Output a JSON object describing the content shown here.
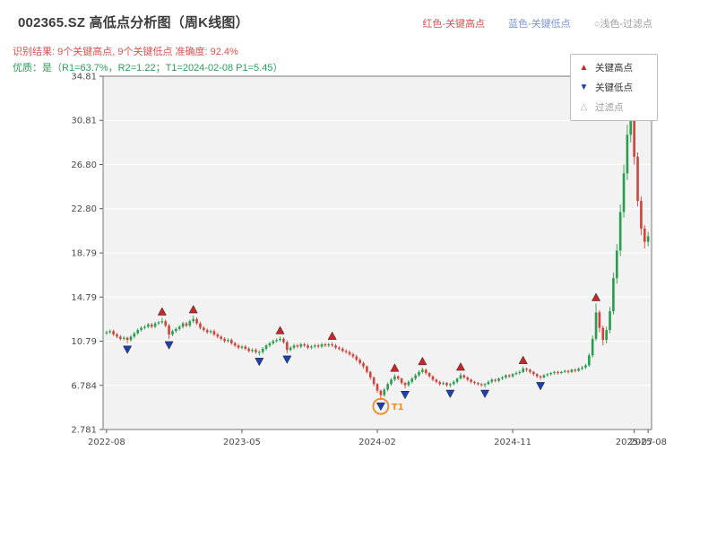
{
  "header": {
    "title": "002365.SZ 高低点分析图（周K线图）",
    "legend": [
      {
        "label": "红色-关键高点",
        "color": "#d9534f"
      },
      {
        "label": "蓝色-关键低点",
        "color": "#7b96cf"
      },
      {
        "label": "○浅色-过滤点",
        "color": "#9e9e9e"
      }
    ],
    "result_line": "识别结果: 9个关键高点, 9个关键低点  准确度: 92.4%",
    "result_color": "#d9534f",
    "quality_line": "优质：是（R1=63.7%，R2=1.22；T1=2024-02-08 P1=5.45）",
    "quality_color": "#2aa05a"
  },
  "chart_data": {
    "type": "candlestick",
    "title": "002365.SZ 高低点分析图（周K线图）",
    "symbol": "002365.SZ",
    "timeframe": "周K线",
    "x_start": "2022-08-04",
    "x_interval_days": 7,
    "ylim": [
      2.781,
      34.81
    ],
    "yticks": [
      "2.781",
      "6.784",
      "10.79",
      "14.79",
      "18.79",
      "22.80",
      "26.80",
      "30.81",
      "34.81"
    ],
    "xticks": [
      {
        "label": "2022-08",
        "i": 0
      },
      {
        "label": "2023-05",
        "i": 39
      },
      {
        "label": "2024-02",
        "i": 78
      },
      {
        "label": "2024-11",
        "i": 117
      },
      {
        "label": "2025-07",
        "i": 152
      },
      {
        "label": "2025-08",
        "i": 156
      }
    ],
    "legend": [
      {
        "label": "关键高点",
        "glyph": "▲",
        "color": "#c62828",
        "text_color": "#333333"
      },
      {
        "label": "关键低点",
        "glyph": "▼",
        "color": "#1e3fae",
        "text_color": "#333333"
      },
      {
        "label": "过滤点",
        "glyph": "△",
        "color": "#aaaaaa",
        "text_color": "#999999"
      }
    ],
    "colors": {
      "up": "#2a9d4e",
      "down": "#cf453c",
      "plot_bg": "#f2f2f3",
      "grid": "#ffffff",
      "spine": "#777777",
      "key_high": "#c62828",
      "key_low": "#1e3fae"
    },
    "candles": [
      [
        11.5,
        11.75,
        11.35,
        11.6
      ],
      [
        11.6,
        11.85,
        11.45,
        11.7
      ],
      [
        11.7,
        11.85,
        11.25,
        11.4
      ],
      [
        11.4,
        11.55,
        11.05,
        11.2
      ],
      [
        11.2,
        11.35,
        10.85,
        11.0
      ],
      [
        11.0,
        11.25,
        10.85,
        11.1
      ],
      [
        11.1,
        11.2,
        10.6,
        10.9
      ],
      [
        10.9,
        11.35,
        10.75,
        11.2
      ],
      [
        11.2,
        11.65,
        11.05,
        11.5
      ],
      [
        11.5,
        11.95,
        11.35,
        11.8
      ],
      [
        11.8,
        12.15,
        11.65,
        12.0
      ],
      [
        12.0,
        12.25,
        11.85,
        12.1
      ],
      [
        12.1,
        12.45,
        11.95,
        12.3
      ],
      [
        12.3,
        12.45,
        11.95,
        12.1
      ],
      [
        12.1,
        12.55,
        11.95,
        12.4
      ],
      [
        12.4,
        12.65,
        12.25,
        12.5
      ],
      [
        12.5,
        12.9,
        12.35,
        12.6
      ],
      [
        12.6,
        12.75,
        12.05,
        12.2
      ],
      [
        12.2,
        12.35,
        11.0,
        11.4
      ],
      [
        11.4,
        11.85,
        11.25,
        11.7
      ],
      [
        11.7,
        12.05,
        11.55,
        11.9
      ],
      [
        11.9,
        12.25,
        11.75,
        12.1
      ],
      [
        12.1,
        12.55,
        11.95,
        12.4
      ],
      [
        12.4,
        12.55,
        12.05,
        12.2
      ],
      [
        12.2,
        12.75,
        12.05,
        12.6
      ],
      [
        12.6,
        13.1,
        12.45,
        12.8
      ],
      [
        12.8,
        12.95,
        12.25,
        12.4
      ],
      [
        12.4,
        12.55,
        11.85,
        12.0
      ],
      [
        12.0,
        12.15,
        11.65,
        11.8
      ],
      [
        11.8,
        11.95,
        11.45,
        11.6
      ],
      [
        11.6,
        11.85,
        11.45,
        11.7
      ],
      [
        11.7,
        11.85,
        11.25,
        11.4
      ],
      [
        11.4,
        11.55,
        11.05,
        11.2
      ],
      [
        11.2,
        11.35,
        10.85,
        11.0
      ],
      [
        11.0,
        11.15,
        10.65,
        10.8
      ],
      [
        10.8,
        11.05,
        10.65,
        10.9
      ],
      [
        10.9,
        11.05,
        10.45,
        10.6
      ],
      [
        10.6,
        10.75,
        10.25,
        10.4
      ],
      [
        10.4,
        10.55,
        10.05,
        10.2
      ],
      [
        10.2,
        10.45,
        10.05,
        10.3
      ],
      [
        10.3,
        10.45,
        9.95,
        10.1
      ],
      [
        10.1,
        10.25,
        9.75,
        9.9
      ],
      [
        9.9,
        10.15,
        9.75,
        10.0
      ],
      [
        10.0,
        10.15,
        9.65,
        9.8
      ],
      [
        9.8,
        9.95,
        9.5,
        9.8
      ],
      [
        9.8,
        10.25,
        9.65,
        10.1
      ],
      [
        10.1,
        10.55,
        9.95,
        10.4
      ],
      [
        10.4,
        10.75,
        10.25,
        10.6
      ],
      [
        10.6,
        10.95,
        10.45,
        10.8
      ],
      [
        10.8,
        11.05,
        10.65,
        10.9
      ],
      [
        10.9,
        11.2,
        10.75,
        11.0
      ],
      [
        11.0,
        11.15,
        10.55,
        10.7
      ],
      [
        10.7,
        10.85,
        9.7,
        10.0
      ],
      [
        10.0,
        10.35,
        9.85,
        10.2
      ],
      [
        10.2,
        10.55,
        10.05,
        10.4
      ],
      [
        10.4,
        10.55,
        10.15,
        10.3
      ],
      [
        10.3,
        10.65,
        10.15,
        10.5
      ],
      [
        10.5,
        10.65,
        10.25,
        10.4
      ],
      [
        10.4,
        10.55,
        10.05,
        10.2
      ],
      [
        10.2,
        10.45,
        10.05,
        10.3
      ],
      [
        10.3,
        10.55,
        10.15,
        10.4
      ],
      [
        10.4,
        10.55,
        10.15,
        10.3
      ],
      [
        10.3,
        10.65,
        10.15,
        10.5
      ],
      [
        10.5,
        10.65,
        10.25,
        10.4
      ],
      [
        10.4,
        10.65,
        10.25,
        10.5
      ],
      [
        10.5,
        10.7,
        10.25,
        10.4
      ],
      [
        10.4,
        10.55,
        10.05,
        10.2
      ],
      [
        10.2,
        10.35,
        9.95,
        10.1
      ],
      [
        10.1,
        10.25,
        9.75,
        9.9
      ],
      [
        9.9,
        10.05,
        9.65,
        9.8
      ],
      [
        9.8,
        9.95,
        9.45,
        9.6
      ],
      [
        9.6,
        9.75,
        9.25,
        9.4
      ],
      [
        9.4,
        9.55,
        8.95,
        9.1
      ],
      [
        9.1,
        9.25,
        8.65,
        8.8
      ],
      [
        8.8,
        8.95,
        8.3,
        8.5
      ],
      [
        8.5,
        8.6,
        7.85,
        8.0
      ],
      [
        8.0,
        8.1,
        7.3,
        7.5
      ],
      [
        7.5,
        7.6,
        6.7,
        6.9
      ],
      [
        6.9,
        7.0,
        6.1,
        6.3
      ],
      [
        6.3,
        6.4,
        5.45,
        5.9
      ],
      [
        5.9,
        6.55,
        5.75,
        6.4
      ],
      [
        6.4,
        7.05,
        6.25,
        6.9
      ],
      [
        6.9,
        7.45,
        6.75,
        7.3
      ],
      [
        7.3,
        7.8,
        7.15,
        7.6
      ],
      [
        7.6,
        7.7,
        7.25,
        7.4
      ],
      [
        7.4,
        7.5,
        6.85,
        7.0
      ],
      [
        7.0,
        7.1,
        6.5,
        6.8
      ],
      [
        6.8,
        7.25,
        6.65,
        7.1
      ],
      [
        7.1,
        7.55,
        6.95,
        7.4
      ],
      [
        7.4,
        7.85,
        7.25,
        7.7
      ],
      [
        7.7,
        8.15,
        7.55,
        8.0
      ],
      [
        8.0,
        8.4,
        7.85,
        8.2
      ],
      [
        8.2,
        8.3,
        7.75,
        7.9
      ],
      [
        7.9,
        8.0,
        7.45,
        7.6
      ],
      [
        7.6,
        7.7,
        7.15,
        7.3
      ],
      [
        7.3,
        7.4,
        6.95,
        7.1
      ],
      [
        7.1,
        7.2,
        6.75,
        6.9
      ],
      [
        6.9,
        7.15,
        6.8,
        7.0
      ],
      [
        7.0,
        7.1,
        6.65,
        6.8
      ],
      [
        6.8,
        7.0,
        6.6,
        6.9
      ],
      [
        6.9,
        7.25,
        6.75,
        7.1
      ],
      [
        7.1,
        7.5,
        6.95,
        7.4
      ],
      [
        7.4,
        7.9,
        7.3,
        7.7
      ],
      [
        7.7,
        7.8,
        7.35,
        7.5
      ],
      [
        7.5,
        7.6,
        7.15,
        7.3
      ],
      [
        7.3,
        7.4,
        6.95,
        7.1
      ],
      [
        7.1,
        7.2,
        6.85,
        7.0
      ],
      [
        7.0,
        7.1,
        6.75,
        6.9
      ],
      [
        6.9,
        7.0,
        6.65,
        6.8
      ],
      [
        6.8,
        7.0,
        6.6,
        6.9
      ],
      [
        6.9,
        7.25,
        6.8,
        7.1
      ],
      [
        7.1,
        7.45,
        6.95,
        7.3
      ],
      [
        7.3,
        7.4,
        7.05,
        7.2
      ],
      [
        7.2,
        7.5,
        7.05,
        7.4
      ],
      [
        7.4,
        7.65,
        7.25,
        7.5
      ],
      [
        7.5,
        7.8,
        7.35,
        7.7
      ],
      [
        7.7,
        7.8,
        7.45,
        7.6
      ],
      [
        7.6,
        7.9,
        7.45,
        7.8
      ],
      [
        7.8,
        8.05,
        7.7,
        7.9
      ],
      [
        7.9,
        8.15,
        7.75,
        8.0
      ],
      [
        8.0,
        8.5,
        7.9,
        8.3
      ],
      [
        8.3,
        8.4,
        8.0,
        8.2
      ],
      [
        8.2,
        8.3,
        7.85,
        8.0
      ],
      [
        8.0,
        8.1,
        7.65,
        7.8
      ],
      [
        7.8,
        7.9,
        7.45,
        7.6
      ],
      [
        7.6,
        7.7,
        7.3,
        7.5
      ],
      [
        7.5,
        7.8,
        7.4,
        7.7
      ],
      [
        7.7,
        7.9,
        7.55,
        7.8
      ],
      [
        7.8,
        8.0,
        7.65,
        7.9
      ],
      [
        7.9,
        8.1,
        7.75,
        8.0
      ],
      [
        8.0,
        8.1,
        7.75,
        7.9
      ],
      [
        7.9,
        8.1,
        7.8,
        8.0
      ],
      [
        8.0,
        8.2,
        7.9,
        8.1
      ],
      [
        8.1,
        8.2,
        7.85,
        8.0
      ],
      [
        8.0,
        8.3,
        7.9,
        8.2
      ],
      [
        8.2,
        8.3,
        7.95,
        8.1
      ],
      [
        8.1,
        8.4,
        8.0,
        8.3
      ],
      [
        8.3,
        8.55,
        8.15,
        8.4
      ],
      [
        8.4,
        8.75,
        8.25,
        8.6
      ],
      [
        8.6,
        9.7,
        8.45,
        9.5
      ],
      [
        9.5,
        11.3,
        9.3,
        11.0
      ],
      [
        11.0,
        14.2,
        10.8,
        13.4
      ],
      [
        13.4,
        13.6,
        11.6,
        12.0
      ],
      [
        12.0,
        12.2,
        10.4,
        10.9
      ],
      [
        10.9,
        12.1,
        10.6,
        11.8
      ],
      [
        11.8,
        13.9,
        11.5,
        13.5
      ],
      [
        13.5,
        17.0,
        13.2,
        16.5
      ],
      [
        16.5,
        19.6,
        16.0,
        19.0
      ],
      [
        19.0,
        23.2,
        18.5,
        22.5
      ],
      [
        22.5,
        26.8,
        22.0,
        26.0
      ],
      [
        26.0,
        30.4,
        25.4,
        29.5
      ],
      [
        29.5,
        31.9,
        28.8,
        31.0
      ],
      [
        31.0,
        31.3,
        26.8,
        27.5
      ],
      [
        27.5,
        27.9,
        23.0,
        23.5
      ],
      [
        23.5,
        23.9,
        20.4,
        21.0
      ],
      [
        21.0,
        21.3,
        19.2,
        19.8
      ],
      [
        19.8,
        20.7,
        19.4,
        20.3
      ]
    ],
    "key_highs": [
      {
        "i": 16,
        "price": 12.9
      },
      {
        "i": 25,
        "price": 13.1
      },
      {
        "i": 50,
        "price": 11.2
      },
      {
        "i": 65,
        "price": 10.7
      },
      {
        "i": 83,
        "price": 7.8
      },
      {
        "i": 91,
        "price": 8.4
      },
      {
        "i": 102,
        "price": 7.9
      },
      {
        "i": 120,
        "price": 8.5
      },
      {
        "i": 141,
        "price": 14.2
      }
    ],
    "key_lows": [
      {
        "i": 6,
        "price": 10.6
      },
      {
        "i": 18,
        "price": 11.0
      },
      {
        "i": 44,
        "price": 9.5
      },
      {
        "i": 52,
        "price": 9.7
      },
      {
        "i": 79,
        "price": 5.45
      },
      {
        "i": 86,
        "price": 6.5
      },
      {
        "i": 99,
        "price": 6.6
      },
      {
        "i": 109,
        "price": 6.6
      },
      {
        "i": 125,
        "price": 7.3
      }
    ],
    "filtered_points": [],
    "annotation": {
      "label": "T1",
      "i": 79,
      "price": 5.45,
      "color": "#f08c1e"
    }
  }
}
